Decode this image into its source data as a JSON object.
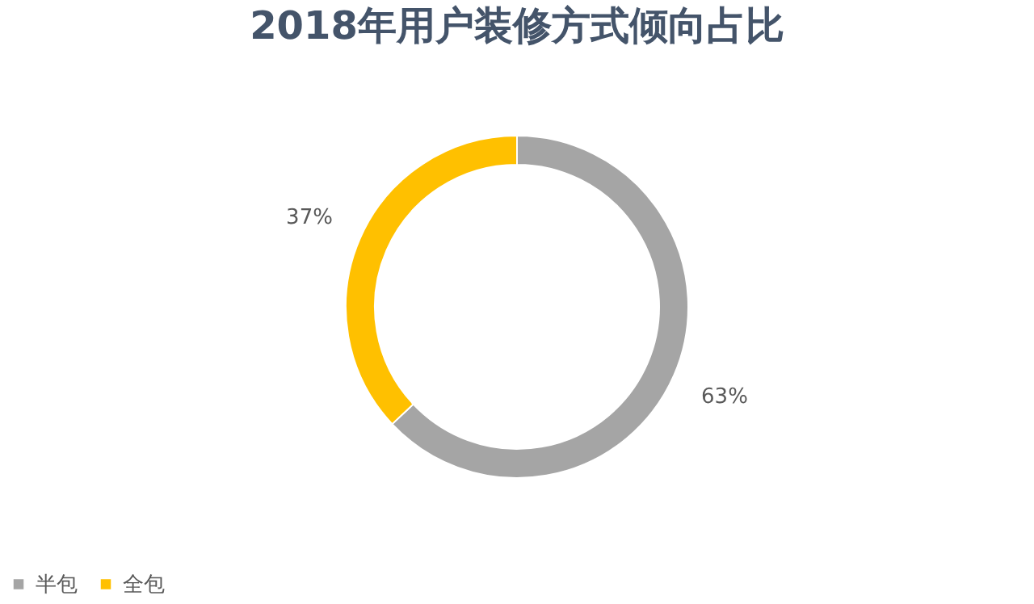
{
  "chart_data": {
    "type": "donut",
    "title": "2018年用户装修方式倾向占比",
    "categories": [
      "半包",
      "全包"
    ],
    "values": [
      63,
      37
    ],
    "colors": [
      "#a5a5a5",
      "#ffc000"
    ],
    "value_labels": [
      "63%",
      "37%"
    ],
    "legend": "bottom"
  }
}
